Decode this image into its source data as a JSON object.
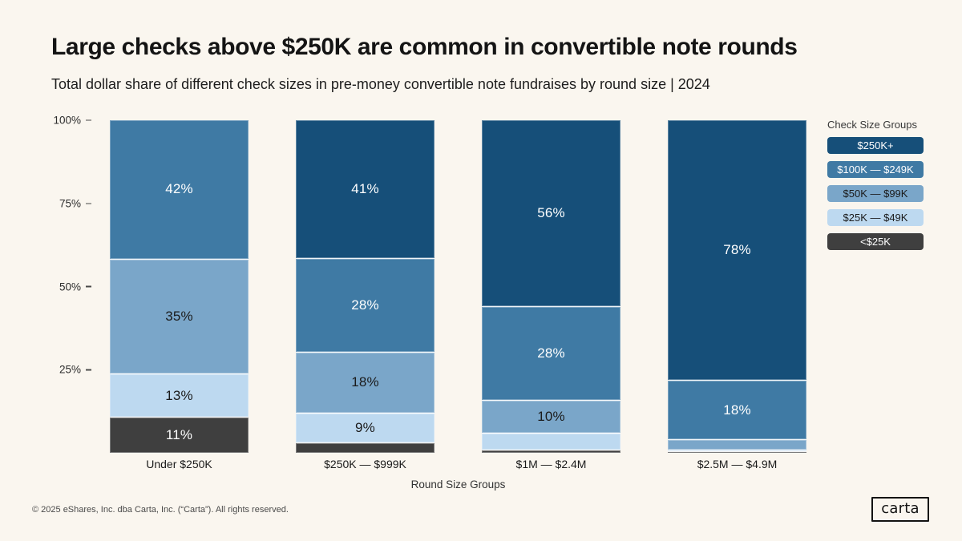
{
  "header": {
    "title": "Large checks above $250K are common in convertible note rounds",
    "subtitle": "Total dollar share of different check sizes in pre-money convertible note fundraises by round size | 2024"
  },
  "chart_data": {
    "type": "bar",
    "variant": "stacked-100-percent",
    "title": "Large checks above $250K are common in convertible note rounds",
    "categories": [
      "Under $250K",
      "$250K — $999K",
      "$1M — $2.4M",
      "$2.5M — $4.9M"
    ],
    "series": [
      {
        "name": "$250K+",
        "color": "#164f79",
        "label_color": "#ffffff",
        "values": [
          0,
          41,
          56,
          78
        ],
        "labels": [
          "",
          "41%",
          "56%",
          "78%"
        ]
      },
      {
        "name": "$100K — $249K",
        "color": "#3f7aa4",
        "label_color": "#ffffff",
        "values": [
          42,
          28,
          28,
          18
        ],
        "labels": [
          "42%",
          "28%",
          "28%",
          "18%"
        ]
      },
      {
        "name": "$50K — $99K",
        "color": "#7aa6c9",
        "label_color": "#1b1b1b",
        "values": [
          35,
          18,
          10,
          3
        ],
        "labels": [
          "35%",
          "18%",
          "10%",
          ""
        ]
      },
      {
        "name": "$25K — $49K",
        "color": "#bdd9f0",
        "label_color": "#1b1b1b",
        "values": [
          13,
          9,
          5,
          0.5
        ],
        "labels": [
          "13%",
          "9%",
          "",
          ""
        ]
      },
      {
        "name": "<$25K",
        "color": "#3f3f3f",
        "label_color": "#ffffff",
        "values": [
          11,
          3,
          1,
          0.5
        ],
        "labels": [
          "11%",
          "",
          "",
          ""
        ]
      }
    ],
    "xlabel": "Round Size Groups",
    "ylabel": "",
    "ylim": [
      0,
      100
    ],
    "yticks": [
      {
        "label": "100%",
        "value": 100
      },
      {
        "label": "75%",
        "value": 75
      },
      {
        "label": "50%",
        "value": 50
      },
      {
        "label": "25%",
        "value": 25
      }
    ],
    "grid": false,
    "legend": {
      "title": "Check Size Groups",
      "position": "right"
    }
  },
  "colors": {
    "background": "#faf6ef",
    "text": "#1b1b1b",
    "axis_text": "#2c2c2c"
  },
  "footer": {
    "copyright": "© 2025 eShares, Inc. dba Carta, Inc. (“Carta”). All rights reserved.",
    "logo_text": "carta"
  }
}
